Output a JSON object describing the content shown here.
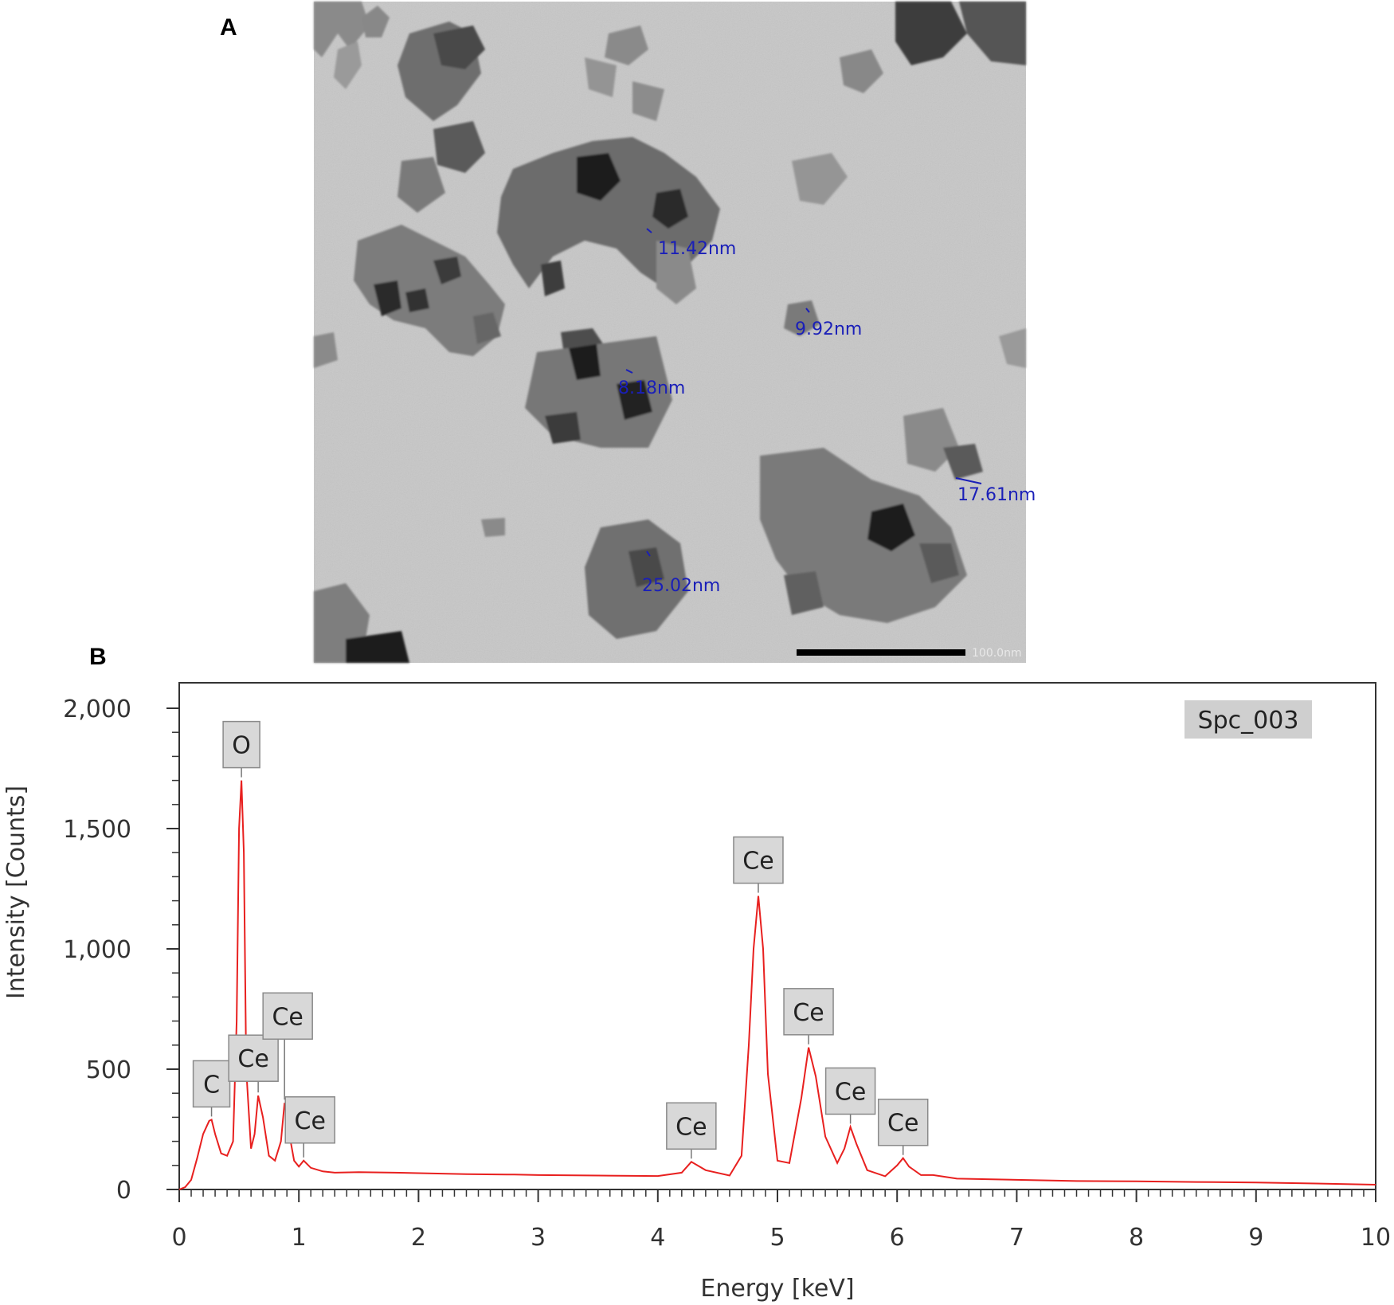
{
  "panels": {
    "a_label": "A",
    "b_label": "B"
  },
  "tem_image": {
    "description_visible": "TEM micrograph of nanoparticle aggregates",
    "measurements": [
      "11.42nm",
      "9.92nm",
      "8.18nm",
      "17.61nm",
      "25.02nm"
    ],
    "scale_bar_label": "100.0nm"
  },
  "chart_data": {
    "type": "line",
    "xlabel": "Energy [keV]",
    "ylabel": "Intensity [Counts]",
    "xlim": [
      0,
      10
    ],
    "ylim": [
      0,
      2000
    ],
    "x_ticks": [
      0,
      1,
      2,
      3,
      4,
      5,
      6,
      7,
      8,
      9,
      10
    ],
    "y_ticks": [
      0,
      500,
      1000,
      1500,
      2000
    ],
    "y_tick_labels": [
      "0",
      "500",
      "1,000",
      "1,500",
      "2,000"
    ],
    "legend": {
      "label": "Spc_003",
      "position": "top-right"
    },
    "line_color": "#e8201f",
    "peaks": [
      {
        "label": "C",
        "energy": 0.27,
        "counts": 290
      },
      {
        "label": "O",
        "energy": 0.52,
        "counts": 1700
      },
      {
        "label": "Ce",
        "energy": 0.66,
        "counts": 390
      },
      {
        "label": "Ce",
        "energy": 0.88,
        "counts": 360
      },
      {
        "label": "Ce",
        "energy": 1.04,
        "counts": 120
      },
      {
        "label": "Ce",
        "energy": 4.28,
        "counts": 115
      },
      {
        "label": "Ce",
        "energy": 4.84,
        "counts": 1220
      },
      {
        "label": "Ce",
        "energy": 5.26,
        "counts": 590
      },
      {
        "label": "Ce",
        "energy": 5.61,
        "counts": 260
      },
      {
        "label": "Ce",
        "energy": 6.05,
        "counts": 130
      }
    ],
    "series": [
      {
        "x": [
          0.0,
          0.05,
          0.1,
          0.15,
          0.2,
          0.25,
          0.27,
          0.3,
          0.35,
          0.4,
          0.45,
          0.48,
          0.5,
          0.52,
          0.54,
          0.56,
          0.6,
          0.63,
          0.66,
          0.7,
          0.75,
          0.8,
          0.85,
          0.88,
          0.92,
          0.96,
          1.0,
          1.04,
          1.1,
          1.2,
          1.3,
          1.5,
          1.8,
          2.0,
          2.4,
          2.8,
          3.0,
          3.5,
          4.0,
          4.2,
          4.28,
          4.4,
          4.6,
          4.7,
          4.76,
          4.8,
          4.84,
          4.88,
          4.92,
          5.0,
          5.1,
          5.2,
          5.26,
          5.32,
          5.4,
          5.5,
          5.56,
          5.61,
          5.66,
          5.75,
          5.9,
          6.0,
          6.05,
          6.1,
          6.2,
          6.3,
          6.5,
          7.0,
          7.5,
          8.0,
          8.5,
          9.0,
          9.5,
          10.0
        ],
        "y": [
          0,
          10,
          40,
          130,
          230,
          285,
          290,
          230,
          150,
          140,
          200,
          700,
          1500,
          1700,
          1400,
          500,
          170,
          230,
          390,
          300,
          140,
          120,
          200,
          360,
          230,
          120,
          95,
          120,
          90,
          75,
          70,
          72,
          70,
          68,
          64,
          62,
          60,
          58,
          56,
          70,
          115,
          80,
          58,
          140,
          600,
          1000,
          1220,
          1000,
          480,
          120,
          110,
          380,
          590,
          470,
          220,
          110,
          170,
          260,
          190,
          80,
          55,
          100,
          130,
          95,
          60,
          60,
          45,
          40,
          35,
          34,
          31,
          29,
          25,
          20
        ]
      }
    ]
  }
}
